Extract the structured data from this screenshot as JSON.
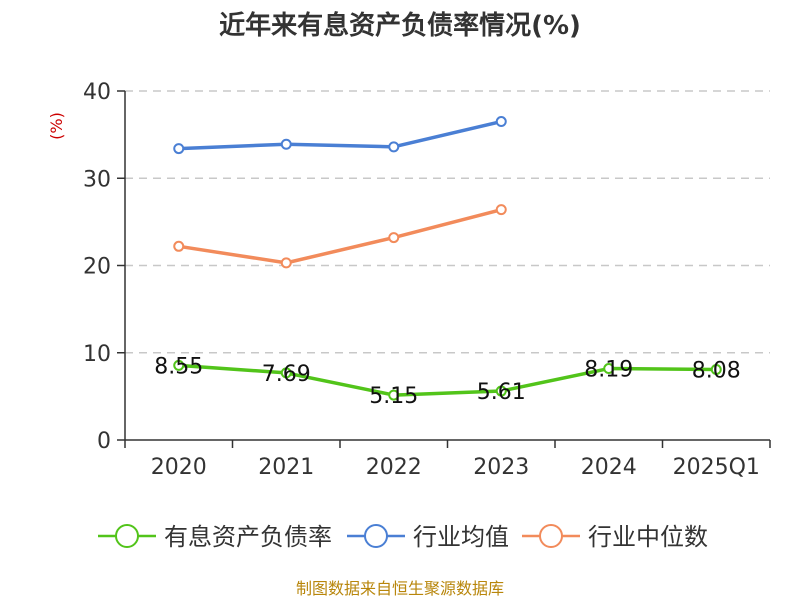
{
  "chart_data": {
    "type": "line",
    "title": "近年来有息资产负债率情况(%)",
    "unit": "(%)",
    "categories": [
      "2020",
      "2021",
      "2022",
      "2023",
      "2024",
      "2025Q1"
    ],
    "ylim": [
      0,
      40
    ],
    "yticks": [
      "0",
      "10",
      "20",
      "30",
      "40"
    ],
    "grid": true,
    "legend_position": "bottom",
    "series": [
      {
        "name": "有息资产负债率",
        "color": "#52c41a",
        "values": [
          8.55,
          7.69,
          5.15,
          5.61,
          8.19,
          8.08
        ],
        "labels": [
          "8.55",
          "7.69",
          "5.15",
          "5.61",
          "8.19",
          "8.08"
        ]
      },
      {
        "name": "行业均值",
        "color": "#4a7fd4",
        "values": [
          33.4,
          33.9,
          33.6,
          36.5,
          null,
          null
        ]
      },
      {
        "name": "行业中位数",
        "color": "#f28b5b",
        "values": [
          22.2,
          20.3,
          23.2,
          26.4,
          null,
          null
        ]
      }
    ],
    "source": "制图数据来自恒生聚源数据库"
  }
}
